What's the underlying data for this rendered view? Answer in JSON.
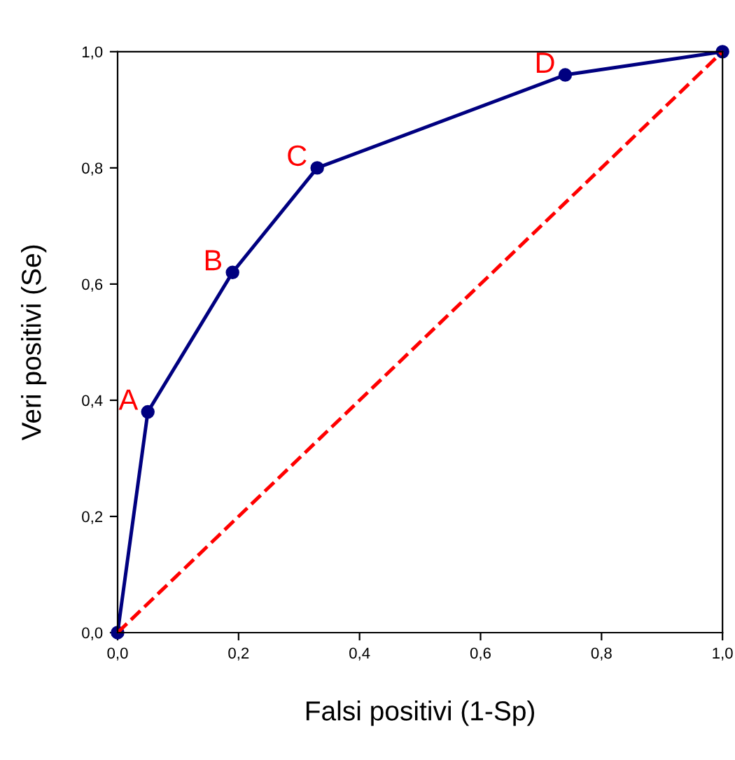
{
  "chart_data": {
    "type": "line",
    "xlabel": "Falsi positivi (1-Sp)",
    "ylabel": "Veri positivi (Se)",
    "series": [
      {
        "color": "#000080",
        "marker": "circle",
        "line_style": "solid",
        "x": [
          0,
          0.05,
          0.19,
          0.33,
          0.74,
          1
        ],
        "values": [
          0,
          0.38,
          0.62,
          0.8,
          0.96,
          1
        ]
      },
      {
        "type": "line",
        "color": "#ff0000",
        "marker": "none",
        "line_style": "dashed",
        "x": [
          0,
          1
        ],
        "values": [
          0,
          1
        ]
      }
    ],
    "annotations": [
      {
        "text": "A",
        "x": 0.05,
        "y": 0.38
      },
      {
        "text": "B",
        "x": 0.19,
        "y": 0.62
      },
      {
        "text": "C",
        "x": 0.33,
        "y": 0.8
      },
      {
        "text": "D",
        "x": 0.74,
        "y": 0.96
      }
    ],
    "xlim": [
      0,
      1
    ],
    "ylim": [
      0,
      1
    ],
    "xticks": [
      {
        "value": 0,
        "label": "0,0"
      },
      {
        "value": 0.2,
        "label": "0,2"
      },
      {
        "value": 0.4,
        "label": "0,4"
      },
      {
        "value": 0.6,
        "label": "0,6"
      },
      {
        "value": 0.8,
        "label": "0,8"
      },
      {
        "value": 1,
        "label": "1,0"
      }
    ],
    "yticks": [
      {
        "value": 0,
        "label": "0,0"
      },
      {
        "value": 0.2,
        "label": "0,2"
      },
      {
        "value": 0.4,
        "label": "0,4"
      },
      {
        "value": 0.6,
        "label": "0,6"
      },
      {
        "value": 0.8,
        "label": "0,8"
      },
      {
        "value": 1,
        "label": "1,0"
      }
    ],
    "grid": false
  }
}
